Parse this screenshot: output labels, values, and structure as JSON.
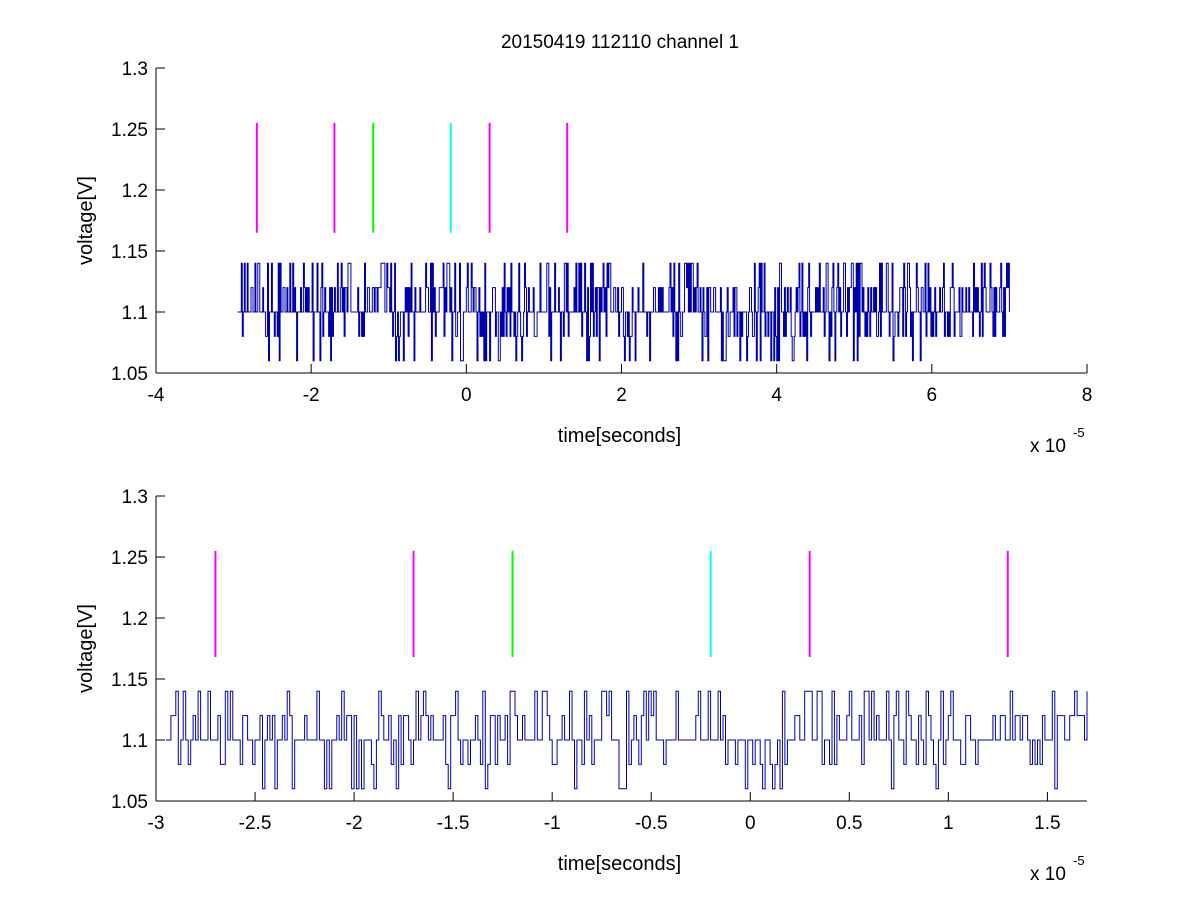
{
  "figure": {
    "title": "20150419 112110 channel 1"
  },
  "chart_data": [
    {
      "type": "line",
      "title": "20150419 112110 channel 1",
      "xlabel": "time[seconds]",
      "ylabel": "voltage[V]",
      "x_multiplier": "x 10",
      "x_exponent": "-5",
      "xlim": [
        -4,
        8
      ],
      "ylim": [
        1.05,
        1.3
      ],
      "xticks": [
        -4,
        -2,
        0,
        2,
        4,
        6,
        8
      ],
      "xtick_labels": [
        "-4",
        "-2",
        "0",
        "2",
        "4",
        "6",
        "8"
      ],
      "yticks": [
        1.05,
        1.1,
        1.15,
        1.2,
        1.25,
        1.3
      ],
      "ytick_labels": [
        "1.05",
        "1.1",
        "1.15",
        "1.2",
        "1.25",
        "1.3"
      ],
      "grid": false,
      "signal": {
        "color": "#0000aa",
        "x_start": -2.95,
        "x_end": 7.0,
        "levels": [
          1.06,
          1.08,
          1.1,
          1.12,
          1.14
        ],
        "baseline": 1.1,
        "seed": 11
      },
      "markers": [
        {
          "x": -2.7,
          "y0": 1.165,
          "y1": 1.255,
          "color": "#ff00ff"
        },
        {
          "x": -1.7,
          "y0": 1.165,
          "y1": 1.255,
          "color": "#ff00ff"
        },
        {
          "x": -1.2,
          "y0": 1.165,
          "y1": 1.255,
          "color": "#00ff00"
        },
        {
          "x": -0.2,
          "y0": 1.165,
          "y1": 1.255,
          "color": "#00ffff"
        },
        {
          "x": 0.3,
          "y0": 1.165,
          "y1": 1.255,
          "color": "#ff00ff"
        },
        {
          "x": 1.3,
          "y0": 1.165,
          "y1": 1.255,
          "color": "#ff00ff"
        }
      ]
    },
    {
      "type": "line",
      "title": "",
      "xlabel": "time[seconds]",
      "ylabel": "voltage[V]",
      "x_multiplier": "x 10",
      "x_exponent": "-5",
      "xlim": [
        -3.0,
        1.7
      ],
      "ylim": [
        1.05,
        1.3
      ],
      "xticks": [
        -3,
        -2.5,
        -2,
        -1.5,
        -1,
        -0.5,
        0,
        0.5,
        1,
        1.5
      ],
      "xtick_labels": [
        "-3",
        "-2.5",
        "-2",
        "-1.5",
        "-1",
        "-0.5",
        "0",
        "0.5",
        "1",
        "1.5"
      ],
      "yticks": [
        1.05,
        1.1,
        1.15,
        1.2,
        1.25,
        1.3
      ],
      "ytick_labels": [
        "1.05",
        "1.1",
        "1.15",
        "1.2",
        "1.25",
        "1.3"
      ],
      "grid": false,
      "signal": {
        "color": "#0000aa",
        "x_start": -2.95,
        "x_end": 1.7,
        "levels": [
          1.06,
          1.08,
          1.1,
          1.12,
          1.14
        ],
        "baseline": 1.1,
        "seed": 23
      },
      "markers": [
        {
          "x": -2.7,
          "y0": 1.168,
          "y1": 1.255,
          "color": "#ff00ff"
        },
        {
          "x": -1.7,
          "y0": 1.168,
          "y1": 1.255,
          "color": "#ff00ff"
        },
        {
          "x": -1.2,
          "y0": 1.168,
          "y1": 1.255,
          "color": "#00ff00"
        },
        {
          "x": -0.2,
          "y0": 1.168,
          "y1": 1.255,
          "color": "#00ffff"
        },
        {
          "x": 0.3,
          "y0": 1.168,
          "y1": 1.255,
          "color": "#ff00ff"
        },
        {
          "x": 1.3,
          "y0": 1.168,
          "y1": 1.255,
          "color": "#ff00ff"
        }
      ]
    }
  ]
}
